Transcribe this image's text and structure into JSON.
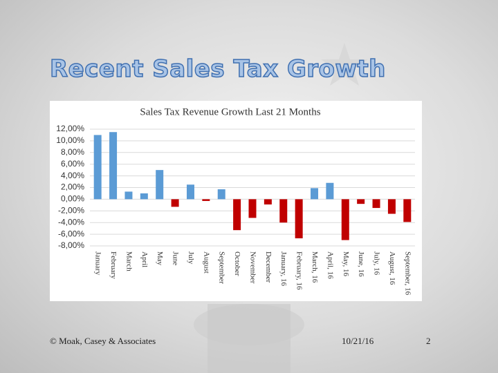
{
  "slide": {
    "title": "Recent Sales Tax Growth",
    "footer": "© Moak, Casey & Associates",
    "date": "10/21/16",
    "page": "2"
  },
  "chart_data": {
    "type": "bar",
    "title": "Sales Tax Revenue Growth Last 21 Months",
    "categories": [
      "January",
      "February",
      "March",
      "April",
      "May",
      "June",
      "July",
      "August",
      "September",
      "October",
      "November",
      "December",
      "January, 16",
      "February, 16",
      "March, 16",
      "April, 16",
      "May, 16",
      "June, 16",
      "July, 16",
      "August, 16",
      "September, 16"
    ],
    "values": [
      11.0,
      11.5,
      1.3,
      1.0,
      5.0,
      -1.3,
      2.5,
      -0.3,
      1.7,
      -5.3,
      -3.2,
      -0.9,
      -4.0,
      -6.7,
      1.9,
      2.8,
      -7.0,
      -0.8,
      -1.5,
      -2.5,
      -3.9
    ],
    "positive_color": "#5b9bd5",
    "negative_color": "#c00000",
    "ylim": [
      -8,
      12
    ],
    "yticks": [
      {
        "value": 12,
        "label": "12,00%"
      },
      {
        "value": 10,
        "label": "10,00%"
      },
      {
        "value": 8,
        "label": "8,00%"
      },
      {
        "value": 6,
        "label": "6,00%"
      },
      {
        "value": 4,
        "label": "4,00%"
      },
      {
        "value": 2,
        "label": "2,00%"
      },
      {
        "value": 0,
        "label": "0,00%"
      },
      {
        "value": -2,
        "label": "-2,00%"
      },
      {
        "value": -4,
        "label": "-4,00%"
      },
      {
        "value": -6,
        "label": "-6,00%"
      },
      {
        "value": -8,
        "label": "-8,00%"
      }
    ],
    "grid": true
  }
}
